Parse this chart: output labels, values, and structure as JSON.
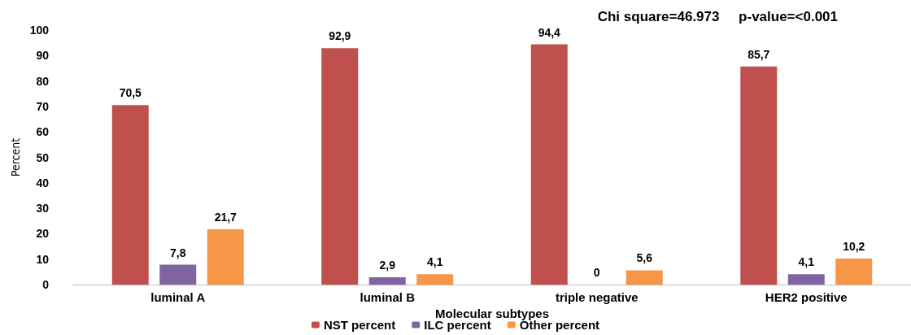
{
  "chart_data": {
    "type": "bar",
    "xlabel": "Molecular subtypes",
    "ylabel": "Percent",
    "annotations": [
      "Chi square=46.973     p-value=<0.001"
    ],
    "categories": [
      "luminal A",
      "luminal B",
      "triple negative",
      "HER2 positive"
    ],
    "series": [
      {
        "name": "NST percent",
        "color": "#c0504d",
        "values": [
          70.5,
          92.9,
          94.4,
          85.7
        ],
        "value_labels": [
          "70,5",
          "92,9",
          "94,4",
          "85,7"
        ]
      },
      {
        "name": "ILC percent",
        "color": "#8064a2",
        "values": [
          7.8,
          2.9,
          0,
          4.1
        ],
        "value_labels": [
          "7,8",
          "2,9",
          "0",
          "4,1"
        ]
      },
      {
        "name": "Other percent",
        "color": "#f79646",
        "values": [
          21.7,
          4.1,
          5.6,
          10.2
        ],
        "value_labels": [
          "21,7",
          "4,1",
          "5,6",
          "10,2"
        ]
      }
    ],
    "ylim": [
      0,
      100
    ],
    "yticks": [
      0,
      10,
      20,
      30,
      40,
      50,
      60,
      70,
      80,
      90,
      100
    ],
    "grid": false,
    "legend": "bottom"
  }
}
